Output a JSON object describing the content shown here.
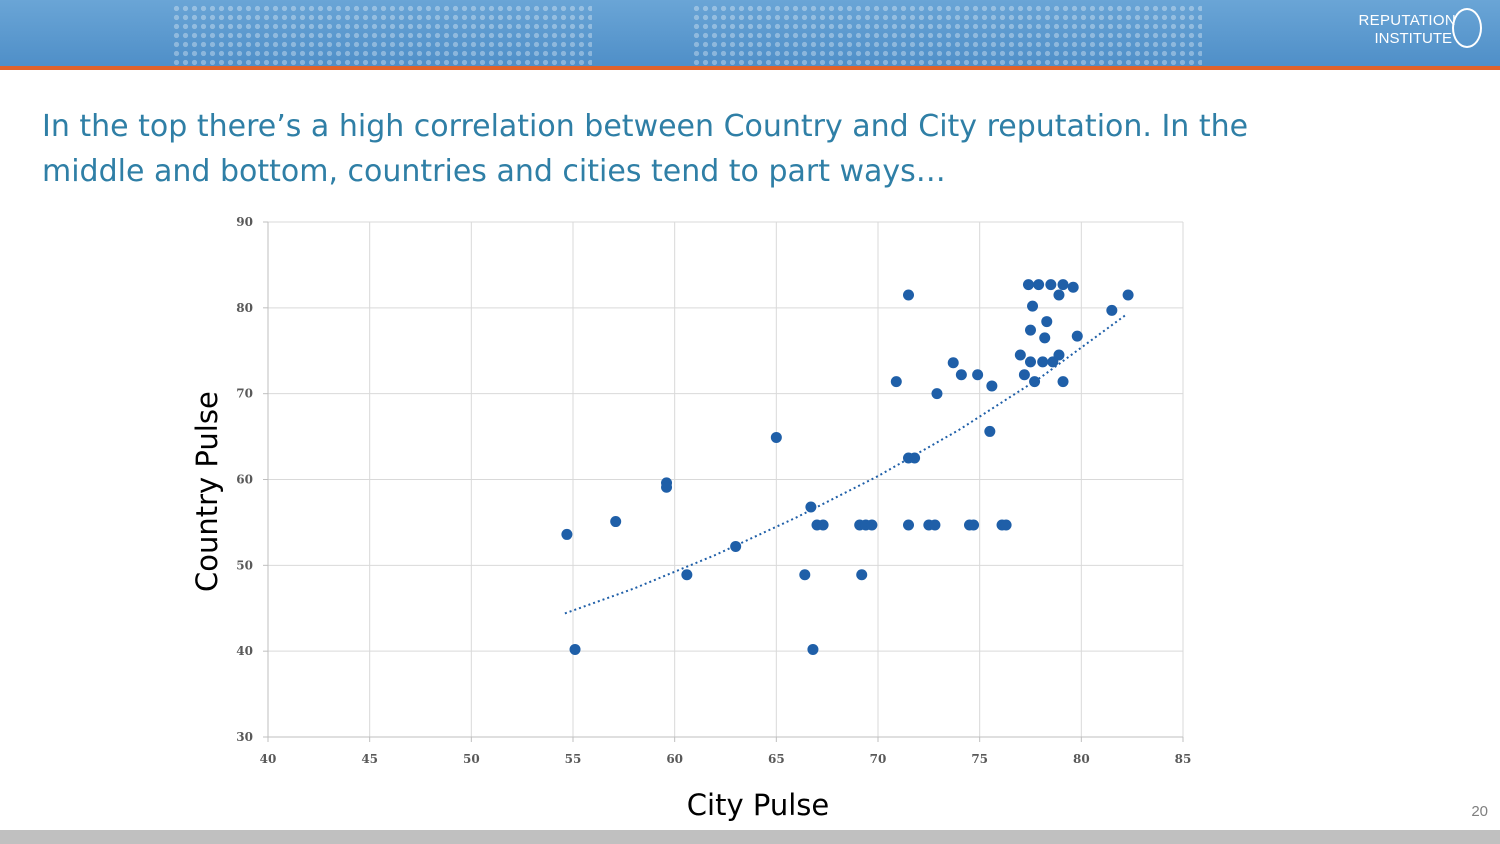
{
  "header": {
    "logo_line1": "Reputation",
    "logo_line2": "Institute",
    "colors": {
      "band": "#5b9bd0",
      "stripe": "#e0622a"
    }
  },
  "headline": "In the top there’s a high correlation between Country and City reputation. In the middle and bottom, countries and cities tend to part ways…",
  "page_number": "20",
  "chart_data": {
    "type": "scatter",
    "title": "",
    "xlabel": "City Pulse",
    "ylabel": "Country Pulse",
    "xlim": [
      40,
      85
    ],
    "ylim": [
      30,
      90
    ],
    "xticks": [
      40,
      45,
      50,
      55,
      60,
      65,
      70,
      75,
      80,
      85
    ],
    "yticks": [
      30,
      40,
      50,
      60,
      70,
      80,
      90
    ],
    "grid": true,
    "marker_color": "#1f5fa8",
    "trendline": {
      "style": "dotted",
      "color": "#1f5fa8",
      "x": [
        54.6,
        58,
        62,
        66,
        70,
        74,
        78,
        82.2
      ],
      "y": [
        44.4,
        47.3,
        51.2,
        55.6,
        60.4,
        65.8,
        71.9,
        79.2
      ]
    },
    "points": [
      {
        "x": 54.7,
        "y": 53.6
      },
      {
        "x": 55.1,
        "y": 40.2
      },
      {
        "x": 57.1,
        "y": 55.1
      },
      {
        "x": 59.6,
        "y": 59.6
      },
      {
        "x": 59.6,
        "y": 59.1
      },
      {
        "x": 60.6,
        "y": 48.9
      },
      {
        "x": 63.0,
        "y": 52.2
      },
      {
        "x": 65.0,
        "y": 64.9
      },
      {
        "x": 66.4,
        "y": 48.9
      },
      {
        "x": 66.7,
        "y": 56.8
      },
      {
        "x": 66.8,
        "y": 40.2
      },
      {
        "x": 67.0,
        "y": 54.7
      },
      {
        "x": 67.3,
        "y": 54.7
      },
      {
        "x": 69.1,
        "y": 54.7
      },
      {
        "x": 69.2,
        "y": 48.9
      },
      {
        "x": 69.4,
        "y": 54.7
      },
      {
        "x": 69.7,
        "y": 54.7
      },
      {
        "x": 70.9,
        "y": 71.4
      },
      {
        "x": 71.5,
        "y": 81.5
      },
      {
        "x": 71.5,
        "y": 62.5
      },
      {
        "x": 71.5,
        "y": 54.7
      },
      {
        "x": 71.8,
        "y": 62.5
      },
      {
        "x": 72.5,
        "y": 54.7
      },
      {
        "x": 72.8,
        "y": 54.7
      },
      {
        "x": 72.9,
        "y": 70.0
      },
      {
        "x": 73.7,
        "y": 73.6
      },
      {
        "x": 74.1,
        "y": 72.2
      },
      {
        "x": 74.5,
        "y": 54.7
      },
      {
        "x": 74.7,
        "y": 54.7
      },
      {
        "x": 74.9,
        "y": 72.2
      },
      {
        "x": 75.5,
        "y": 65.6
      },
      {
        "x": 75.6,
        "y": 70.9
      },
      {
        "x": 76.1,
        "y": 54.7
      },
      {
        "x": 76.3,
        "y": 54.7
      },
      {
        "x": 77.0,
        "y": 74.5
      },
      {
        "x": 77.2,
        "y": 72.2
      },
      {
        "x": 77.4,
        "y": 82.7
      },
      {
        "x": 77.5,
        "y": 73.7
      },
      {
        "x": 77.5,
        "y": 77.4
      },
      {
        "x": 77.6,
        "y": 80.2
      },
      {
        "x": 77.7,
        "y": 71.4
      },
      {
        "x": 77.9,
        "y": 82.7
      },
      {
        "x": 78.1,
        "y": 73.7
      },
      {
        "x": 78.2,
        "y": 76.5
      },
      {
        "x": 78.3,
        "y": 78.4
      },
      {
        "x": 78.5,
        "y": 82.7
      },
      {
        "x": 78.6,
        "y": 73.7
      },
      {
        "x": 78.9,
        "y": 81.5
      },
      {
        "x": 78.9,
        "y": 74.5
      },
      {
        "x": 79.1,
        "y": 82.7
      },
      {
        "x": 79.1,
        "y": 71.4
      },
      {
        "x": 79.6,
        "y": 82.4
      },
      {
        "x": 79.8,
        "y": 76.7
      },
      {
        "x": 81.5,
        "y": 79.7
      },
      {
        "x": 82.3,
        "y": 81.5
      }
    ]
  }
}
